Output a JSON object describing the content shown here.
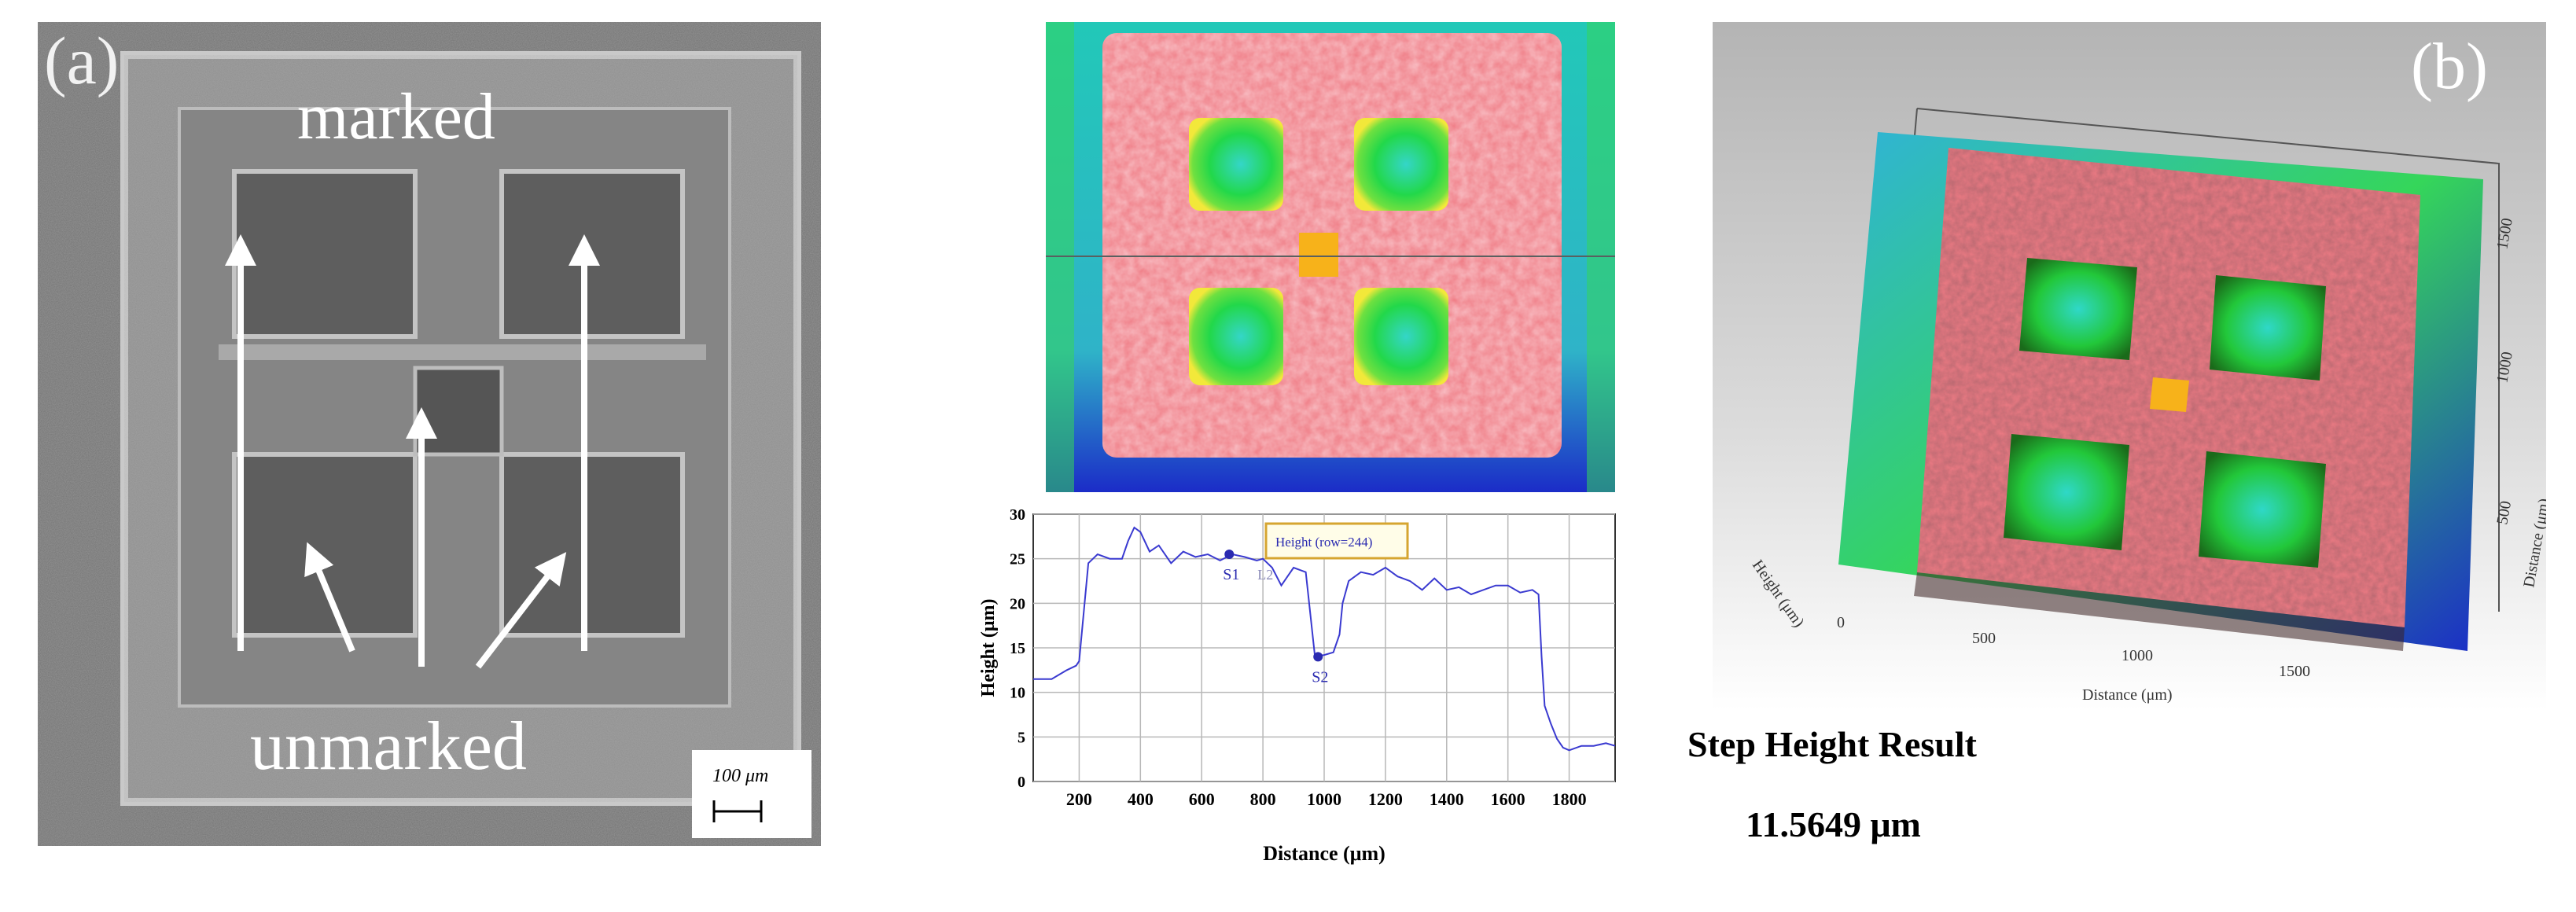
{
  "panel_a": {
    "label": "(a)",
    "marked": "marked",
    "unmarked": "unmarked",
    "scale_bar": "100 μm"
  },
  "panel_b": {
    "label": "(b)"
  },
  "profile_chart": {
    "chart_data": {
      "type": "line",
      "xlabel": "Distance (μm)",
      "ylabel": "Height (μm)",
      "xlim": [
        50,
        1950
      ],
      "ylim": [
        0,
        30
      ],
      "x_ticks": [
        200,
        400,
        600,
        800,
        1000,
        1200,
        1400,
        1600,
        1800
      ],
      "y_ticks": [
        0,
        5,
        10,
        15,
        20,
        25,
        30
      ],
      "grid": true,
      "legend_box": "Height (row=244)",
      "markers": [
        {
          "label": "S1",
          "x": 690,
          "y": 25.5
        },
        {
          "label": "S2",
          "x": 980,
          "y": 14.0
        }
      ],
      "marker_extra": "L2",
      "x": [
        50,
        110,
        160,
        190,
        200,
        230,
        260,
        300,
        340,
        360,
        380,
        400,
        430,
        460,
        500,
        540,
        580,
        620,
        660,
        700,
        740,
        780,
        800,
        830,
        860,
        880,
        900,
        940,
        970,
        1000,
        1030,
        1050,
        1060,
        1080,
        1120,
        1160,
        1200,
        1240,
        1280,
        1320,
        1360,
        1400,
        1440,
        1480,
        1520,
        1560,
        1600,
        1640,
        1680,
        1700,
        1710,
        1720,
        1740,
        1760,
        1780,
        1800,
        1840,
        1880,
        1920,
        1950
      ],
      "y": [
        11.5,
        11.5,
        12.5,
        13.0,
        13.5,
        24.5,
        25.5,
        25.0,
        25.0,
        27.0,
        28.5,
        28.0,
        25.8,
        26.5,
        24.5,
        25.8,
        25.2,
        25.5,
        24.8,
        25.5,
        25.2,
        24.8,
        25.0,
        24.0,
        22.0,
        23.0,
        24.0,
        23.5,
        14.0,
        14.2,
        14.5,
        16.5,
        20.0,
        22.5,
        23.5,
        23.2,
        24.0,
        23.0,
        22.5,
        21.5,
        22.8,
        21.5,
        21.8,
        21.0,
        21.5,
        22.0,
        22.0,
        21.2,
        21.5,
        21.0,
        14.0,
        8.5,
        6.5,
        4.8,
        3.8,
        3.5,
        4.0,
        4.0,
        4.3,
        4.0
      ]
    }
  },
  "surface3d": {
    "x_ticks": [
      "0",
      "500",
      "1000",
      "1500"
    ],
    "x_label": "Distance (μm)",
    "y_ticks": [
      "500",
      "1000",
      "1500"
    ],
    "y_label": "Distance (μm)",
    "z_label": "Height (μm)"
  },
  "result": {
    "title": "Step Height Result",
    "value": "11.5649 μm"
  },
  "colors": {
    "low": "#1a1ad0",
    "mid": "#22d84a",
    "high": "#ef6f78",
    "peak": "#f7b21a"
  }
}
